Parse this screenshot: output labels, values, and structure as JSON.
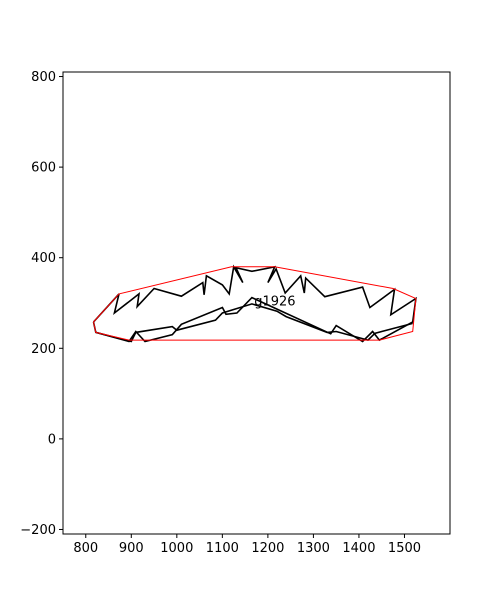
{
  "chart_data": {
    "type": "line",
    "title": "",
    "xlabel": "",
    "ylabel": "",
    "xlim": [
      750,
      1600
    ],
    "ylim": [
      -210,
      810
    ],
    "x_ticks": [
      800,
      900,
      1000,
      1100,
      1200,
      1300,
      1400,
      1500
    ],
    "y_ticks": [
      -200,
      0,
      200,
      400,
      600,
      800
    ],
    "x_tick_labels": [
      "800",
      "900",
      "1000",
      "1100",
      "1200",
      "1300",
      "1400",
      "1500"
    ],
    "y_tick_labels": [
      "−200",
      "0",
      "200",
      "400",
      "600",
      "800"
    ],
    "grid": false,
    "annotation": {
      "text": "g1926",
      "x": 1170,
      "y": 295
    },
    "series": [
      {
        "role": "shape-outline",
        "color": "#000000",
        "points": [
          [
            817,
            258
          ],
          [
            873,
            320
          ],
          [
            863,
            278
          ],
          [
            917,
            320
          ],
          [
            913,
            292
          ],
          [
            950,
            332
          ],
          [
            1010,
            315
          ],
          [
            1057,
            345
          ],
          [
            1060,
            318
          ],
          [
            1065,
            360
          ],
          [
            1100,
            340
          ],
          [
            1115,
            320
          ],
          [
            1125,
            380
          ],
          [
            1145,
            345
          ],
          [
            1130,
            378
          ],
          [
            1165,
            370
          ],
          [
            1215,
            380
          ],
          [
            1200,
            345
          ],
          [
            1218,
            375
          ],
          [
            1238,
            322
          ],
          [
            1272,
            360
          ],
          [
            1280,
            322
          ],
          [
            1283,
            355
          ],
          [
            1325,
            314
          ],
          [
            1408,
            335
          ],
          [
            1424,
            290
          ],
          [
            1478,
            330
          ],
          [
            1470,
            274
          ],
          [
            1525,
            310
          ],
          [
            1518,
            258
          ],
          [
            1445,
            218
          ],
          [
            1430,
            237
          ],
          [
            1408,
            215
          ],
          [
            1350,
            250
          ],
          [
            1338,
            232
          ],
          [
            1165,
            312
          ],
          [
            1132,
            278
          ],
          [
            1108,
            275
          ],
          [
            1100,
            290
          ],
          [
            1010,
            253
          ],
          [
            990,
            230
          ],
          [
            930,
            215
          ],
          [
            910,
            237
          ],
          [
            895,
            215
          ],
          [
            822,
            235
          ],
          [
            817,
            258
          ]
        ]
      },
      {
        "role": "inner-line",
        "color": "#000000",
        "points": [
          [
            822,
            235
          ],
          [
            900,
            215
          ],
          [
            910,
            235
          ],
          [
            990,
            248
          ],
          [
            1000,
            240
          ],
          [
            1085,
            262
          ],
          [
            1100,
            278
          ],
          [
            1165,
            298
          ],
          [
            1220,
            282
          ],
          [
            1240,
            270
          ],
          [
            1330,
            235
          ],
          [
            1350,
            237
          ],
          [
            1420,
            218
          ],
          [
            1435,
            233
          ],
          [
            1518,
            255
          ]
        ]
      },
      {
        "role": "convex-hull",
        "color": "#ff0000",
        "points": [
          [
            817,
            258
          ],
          [
            873,
            320
          ],
          [
            1120,
            380
          ],
          [
            1215,
            380
          ],
          [
            1475,
            332
          ],
          [
            1525,
            310
          ],
          [
            1518,
            237
          ],
          [
            1445,
            218
          ],
          [
            895,
            218
          ],
          [
            822,
            235
          ],
          [
            817,
            258
          ]
        ]
      }
    ]
  }
}
